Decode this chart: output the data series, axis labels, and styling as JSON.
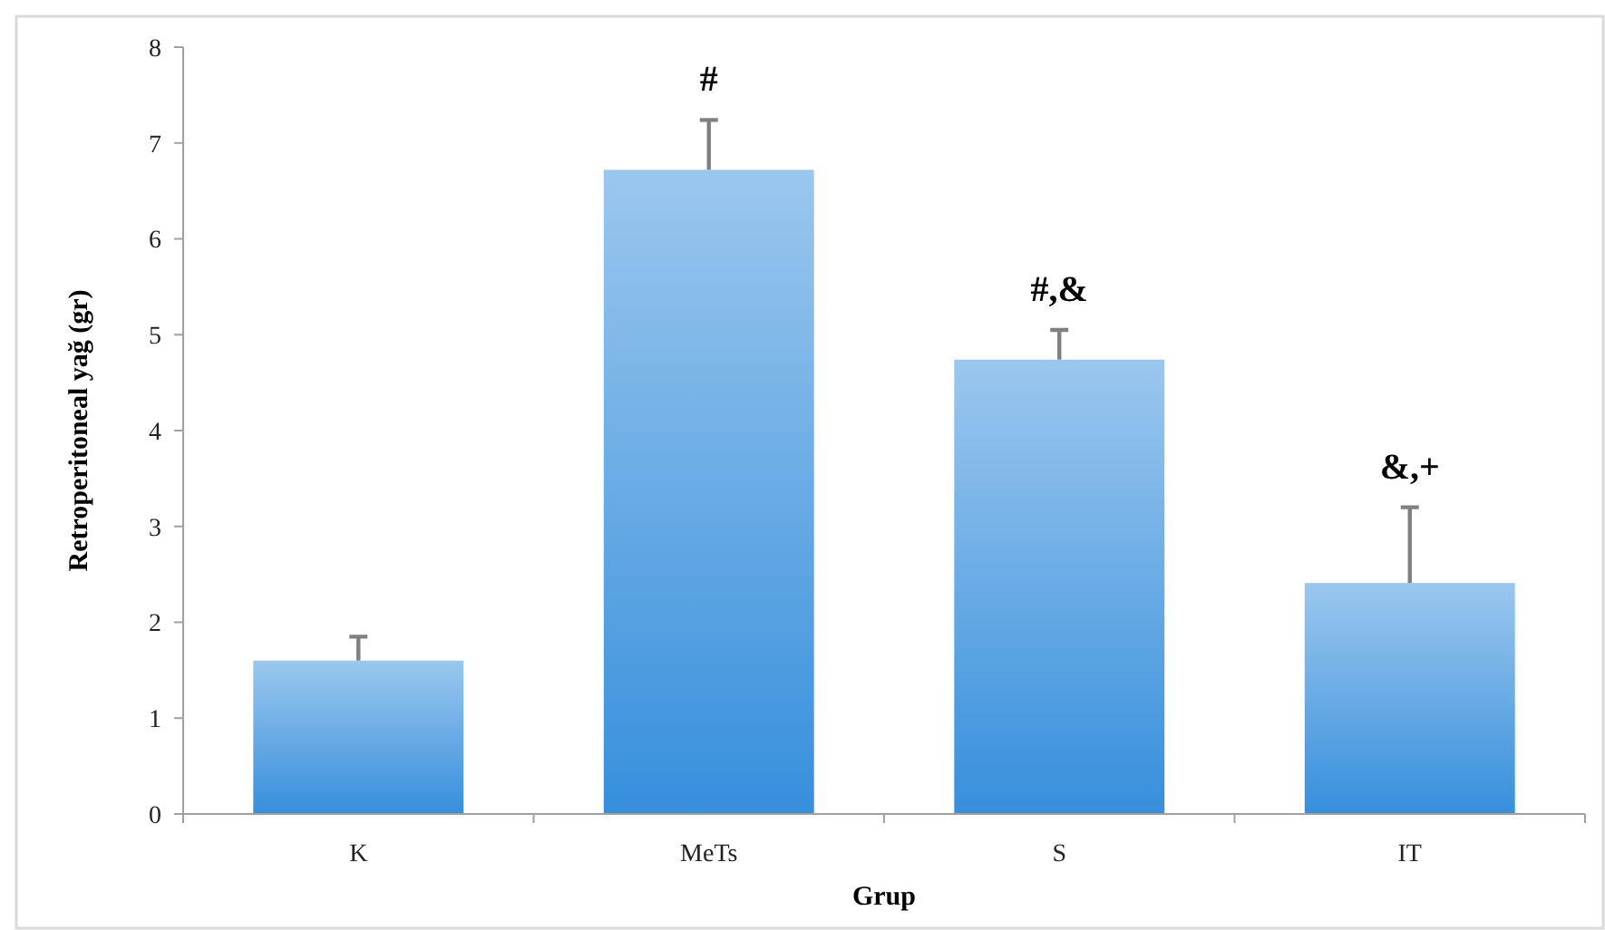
{
  "chart_data": {
    "type": "bar",
    "xlabel": "Grup",
    "ylabel": "Retroperitoneal yağ (gr)",
    "categories": [
      "K",
      "MeTs",
      "S",
      "IT"
    ],
    "values": [
      1.6,
      6.72,
      4.74,
      2.41
    ],
    "errors": [
      [
        1.6,
        1.85
      ],
      [
        6.72,
        7.24
      ],
      [
        4.74,
        5.05
      ],
      [
        2.41,
        3.2
      ]
    ],
    "color": "#368fdc",
    "ylim": [
      0,
      8
    ],
    "yticks": [
      0,
      1,
      2,
      3,
      4,
      5,
      6,
      7,
      8
    ],
    "grid": false,
    "annotations": [
      "#",
      "#,&",
      "&,+"
    ]
  }
}
